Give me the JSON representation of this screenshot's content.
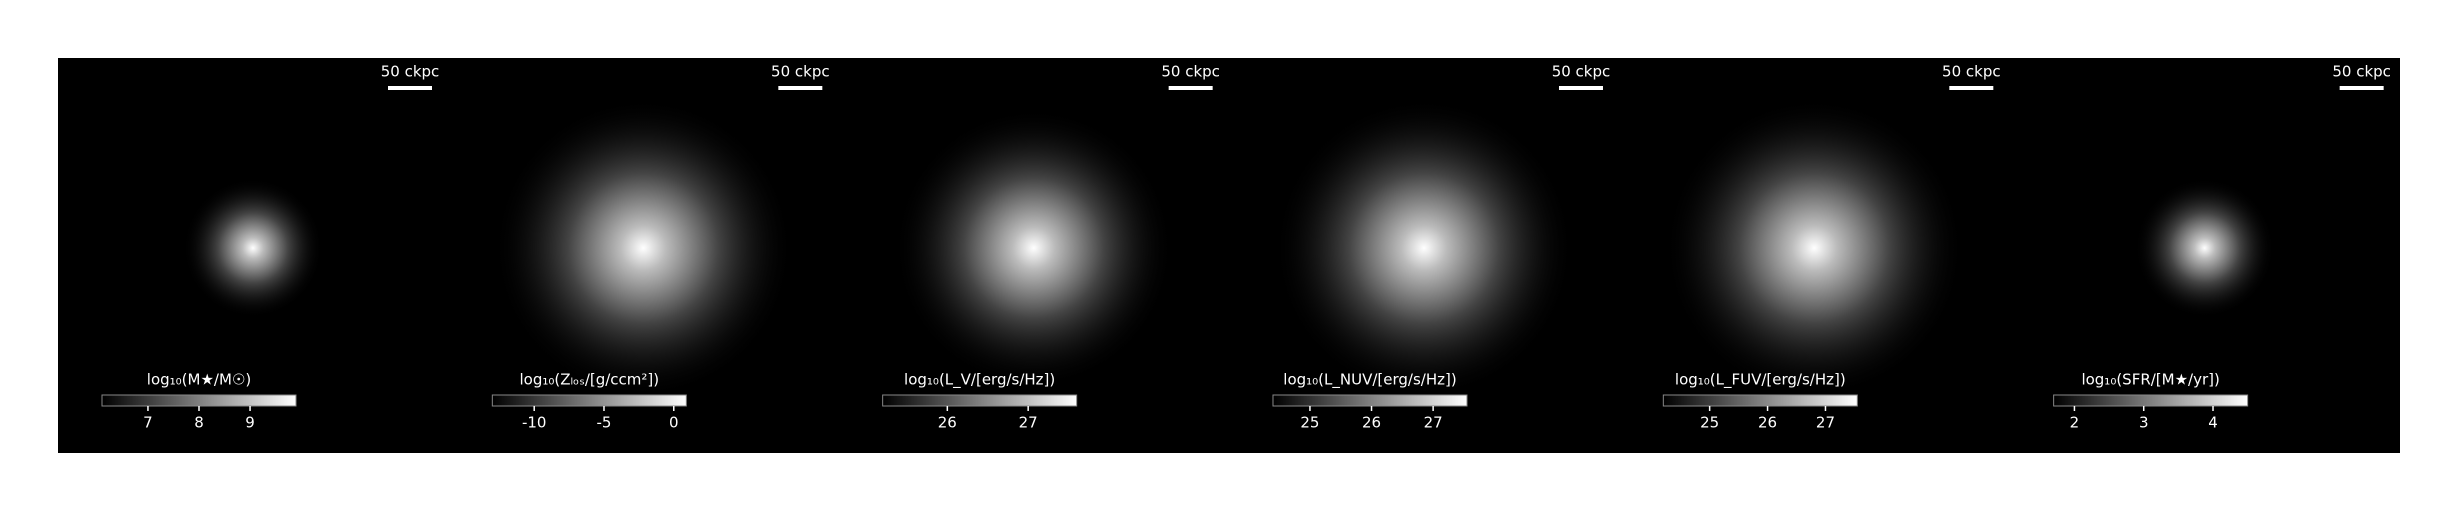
{
  "chart_data": [
    {
      "type": "image",
      "scale_bar_label": "50 ckpc",
      "colorbar_label": "log₁₀(M★/M☉)",
      "clim": [
        6.1,
        9.9
      ],
      "cticks": [
        7,
        8,
        9
      ]
    },
    {
      "type": "image",
      "scale_bar_label": "50 ckpc",
      "colorbar_label": "log₁₀(Zₗₒₛ/[g/ccm²])",
      "clim": [
        -13,
        0.9
      ],
      "cticks": [
        -10,
        -5,
        0
      ]
    },
    {
      "type": "image",
      "scale_bar_label": "50 ckpc",
      "colorbar_label": "log₁₀(L_V/[erg/s/Hz])",
      "clim": [
        25.2,
        27.6
      ],
      "cticks": [
        26,
        27
      ]
    },
    {
      "type": "image",
      "scale_bar_label": "50 ckpc",
      "colorbar_label": "log₁₀(L_NUV/[erg/s/Hz])",
      "clim": [
        24.4,
        27.55
      ],
      "cticks": [
        25,
        26,
        27
      ]
    },
    {
      "type": "image",
      "scale_bar_label": "50 ckpc",
      "colorbar_label": "log₁₀(L_FUV/[erg/s/Hz])",
      "clim": [
        24.2,
        27.55
      ],
      "cticks": [
        25,
        26,
        27
      ]
    },
    {
      "type": "image",
      "scale_bar_label": "50 ckpc",
      "colorbar_label": "log₁₀(SFR/[M★/yr])",
      "clim": [
        1.7,
        4.5
      ],
      "cticks": [
        2,
        3,
        4
      ]
    }
  ]
}
